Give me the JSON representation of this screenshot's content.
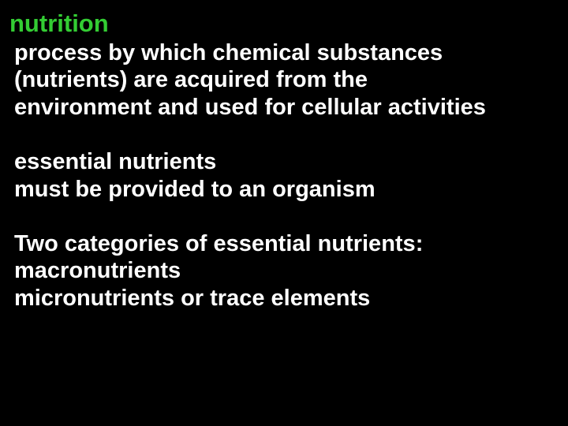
{
  "slide": {
    "title": "nutrition",
    "title_color": "#33cc33",
    "text_color": "#ffffff",
    "background_color": "#000000",
    "title_fontsize": 31,
    "body_fontsize": 29,
    "font_weight": "bold",
    "font_family": "Arial, Helvetica, sans-serif",
    "lines": {
      "l1": "process by which chemical substances",
      "l2": "(nutrients) are acquired from the",
      "l3": " environment and used for cellular activities",
      "l4": "essential nutrients",
      "l5": " must be provided to an organism",
      "l6": " Two categories of essential nutrients:",
      "l7": "macronutrients",
      "l8": " micronutrients or trace elements"
    }
  }
}
